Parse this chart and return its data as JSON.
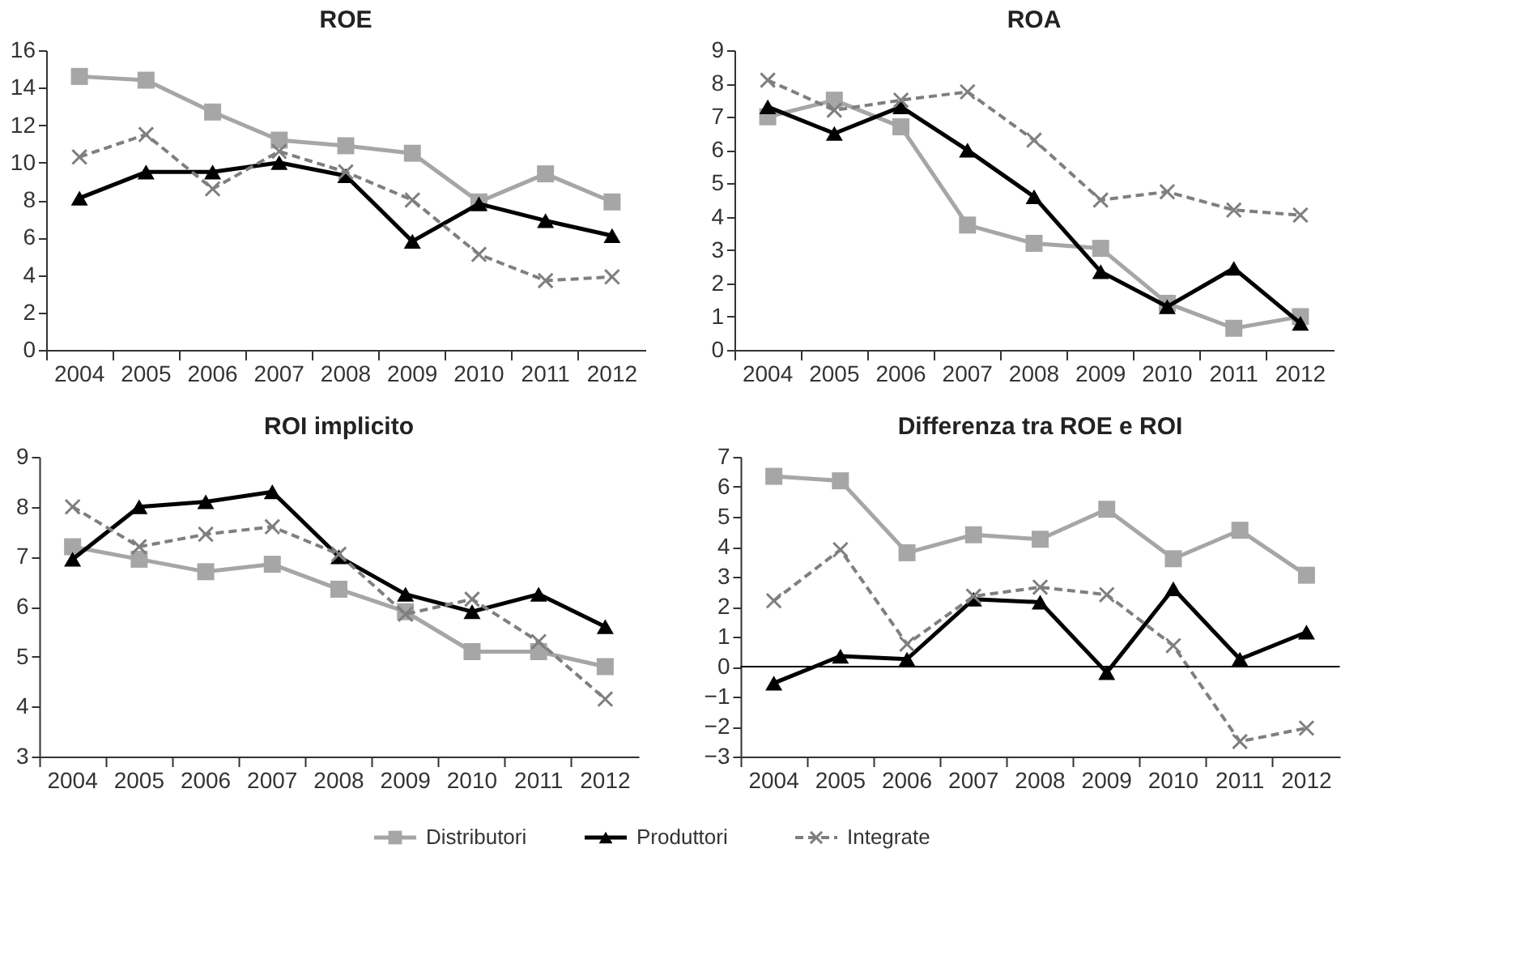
{
  "chart_data": [
    {
      "type": "line",
      "title": "ROE",
      "categories": [
        "2004",
        "2005",
        "2006",
        "2007",
        "2008",
        "2009",
        "2010",
        "2011",
        "2012"
      ],
      "ylim": [
        0,
        16
      ],
      "yticks": [
        0,
        2,
        4,
        6,
        8,
        10,
        12,
        14,
        16
      ],
      "grid": false,
      "legend": "bottom",
      "series": [
        {
          "name": "Distributori",
          "color": "#a6a6a6",
          "marker": "square",
          "line_style": "solid",
          "values": [
            14.6,
            14.4,
            12.7,
            11.2,
            10.9,
            10.5,
            7.9,
            9.4,
            7.9
          ]
        },
        {
          "name": "Produttori",
          "color": "#000000",
          "marker": "triangle",
          "line_style": "solid",
          "values": [
            8.1,
            9.5,
            9.5,
            10.0,
            9.3,
            5.8,
            7.8,
            6.9,
            6.1
          ]
        },
        {
          "name": "Integrate",
          "color": "#7f7f7f",
          "marker": "cross",
          "line_style": "dashed",
          "values": [
            10.3,
            11.5,
            8.6,
            10.6,
            9.5,
            8.0,
            5.1,
            3.7,
            3.9
          ]
        }
      ]
    },
    {
      "type": "line",
      "title": "ROA",
      "categories": [
        "2004",
        "2005",
        "2006",
        "2007",
        "2008",
        "2009",
        "2010",
        "2011",
        "2012"
      ],
      "ylim": [
        0,
        9
      ],
      "yticks": [
        0,
        1,
        2,
        3,
        4,
        5,
        6,
        7,
        8,
        9
      ],
      "grid": false,
      "series": [
        {
          "color": "#a6a6a6",
          "marker": "square",
          "line_style": "solid",
          "values": [
            7.0,
            7.5,
            6.7,
            3.75,
            3.2,
            3.05,
            1.4,
            0.65,
            1.0
          ]
        },
        {
          "color": "#000000",
          "marker": "triangle",
          "line_style": "solid",
          "values": [
            7.3,
            6.5,
            7.3,
            6.0,
            4.6,
            2.35,
            1.3,
            2.45,
            0.8
          ]
        },
        {
          "color": "#7f7f7f",
          "marker": "cross",
          "line_style": "dashed",
          "values": [
            8.1,
            7.2,
            7.5,
            7.75,
            6.3,
            4.5,
            4.75,
            4.2,
            4.05
          ]
        }
      ]
    },
    {
      "type": "line",
      "title": "ROI implicito",
      "categories": [
        "2004",
        "2005",
        "2006",
        "2007",
        "2008",
        "2009",
        "2010",
        "2011",
        "2012"
      ],
      "ylim": [
        3,
        9
      ],
      "yticks": [
        3,
        4,
        5,
        6,
        7,
        8,
        9
      ],
      "grid": false,
      "series": [
        {
          "color": "#a6a6a6",
          "marker": "square",
          "line_style": "solid",
          "values": [
            7.2,
            6.95,
            6.7,
            6.85,
            6.35,
            5.9,
            5.1,
            5.1,
            4.8
          ]
        },
        {
          "color": "#000000",
          "marker": "triangle",
          "line_style": "solid",
          "values": [
            6.95,
            8.0,
            8.1,
            8.3,
            7.0,
            6.25,
            5.9,
            6.25,
            5.6
          ]
        },
        {
          "color": "#7f7f7f",
          "marker": "cross",
          "line_style": "dashed",
          "values": [
            8.0,
            7.2,
            7.45,
            7.6,
            7.05,
            5.85,
            6.15,
            5.3,
            4.15
          ]
        }
      ]
    },
    {
      "type": "line",
      "title": "Differenza tra ROE e ROI",
      "categories": [
        "2004",
        "2005",
        "2006",
        "2007",
        "2008",
        "2009",
        "2010",
        "2011",
        "2012"
      ],
      "ylim": [
        -3,
        7
      ],
      "yticks": [
        -3,
        -2,
        -1,
        0,
        1,
        2,
        3,
        4,
        5,
        6,
        7
      ],
      "grid": false,
      "ref_lines": [
        {
          "axis": "y",
          "value": 0,
          "color": "#000000",
          "line_style": "solid"
        }
      ],
      "series": [
        {
          "color": "#a6a6a6",
          "marker": "square",
          "line_style": "solid",
          "values": [
            6.35,
            6.2,
            3.8,
            4.4,
            4.25,
            5.25,
            3.6,
            4.55,
            3.05
          ]
        },
        {
          "color": "#000000",
          "marker": "triangle",
          "line_style": "solid",
          "values": [
            -0.55,
            0.35,
            0.25,
            2.25,
            2.15,
            -0.2,
            2.6,
            0.25,
            1.15
          ]
        },
        {
          "color": "#7f7f7f",
          "marker": "cross",
          "line_style": "dashed",
          "values": [
            2.2,
            3.9,
            0.75,
            2.35,
            2.65,
            2.4,
            0.7,
            -2.5,
            -2.05
          ]
        }
      ]
    }
  ]
}
